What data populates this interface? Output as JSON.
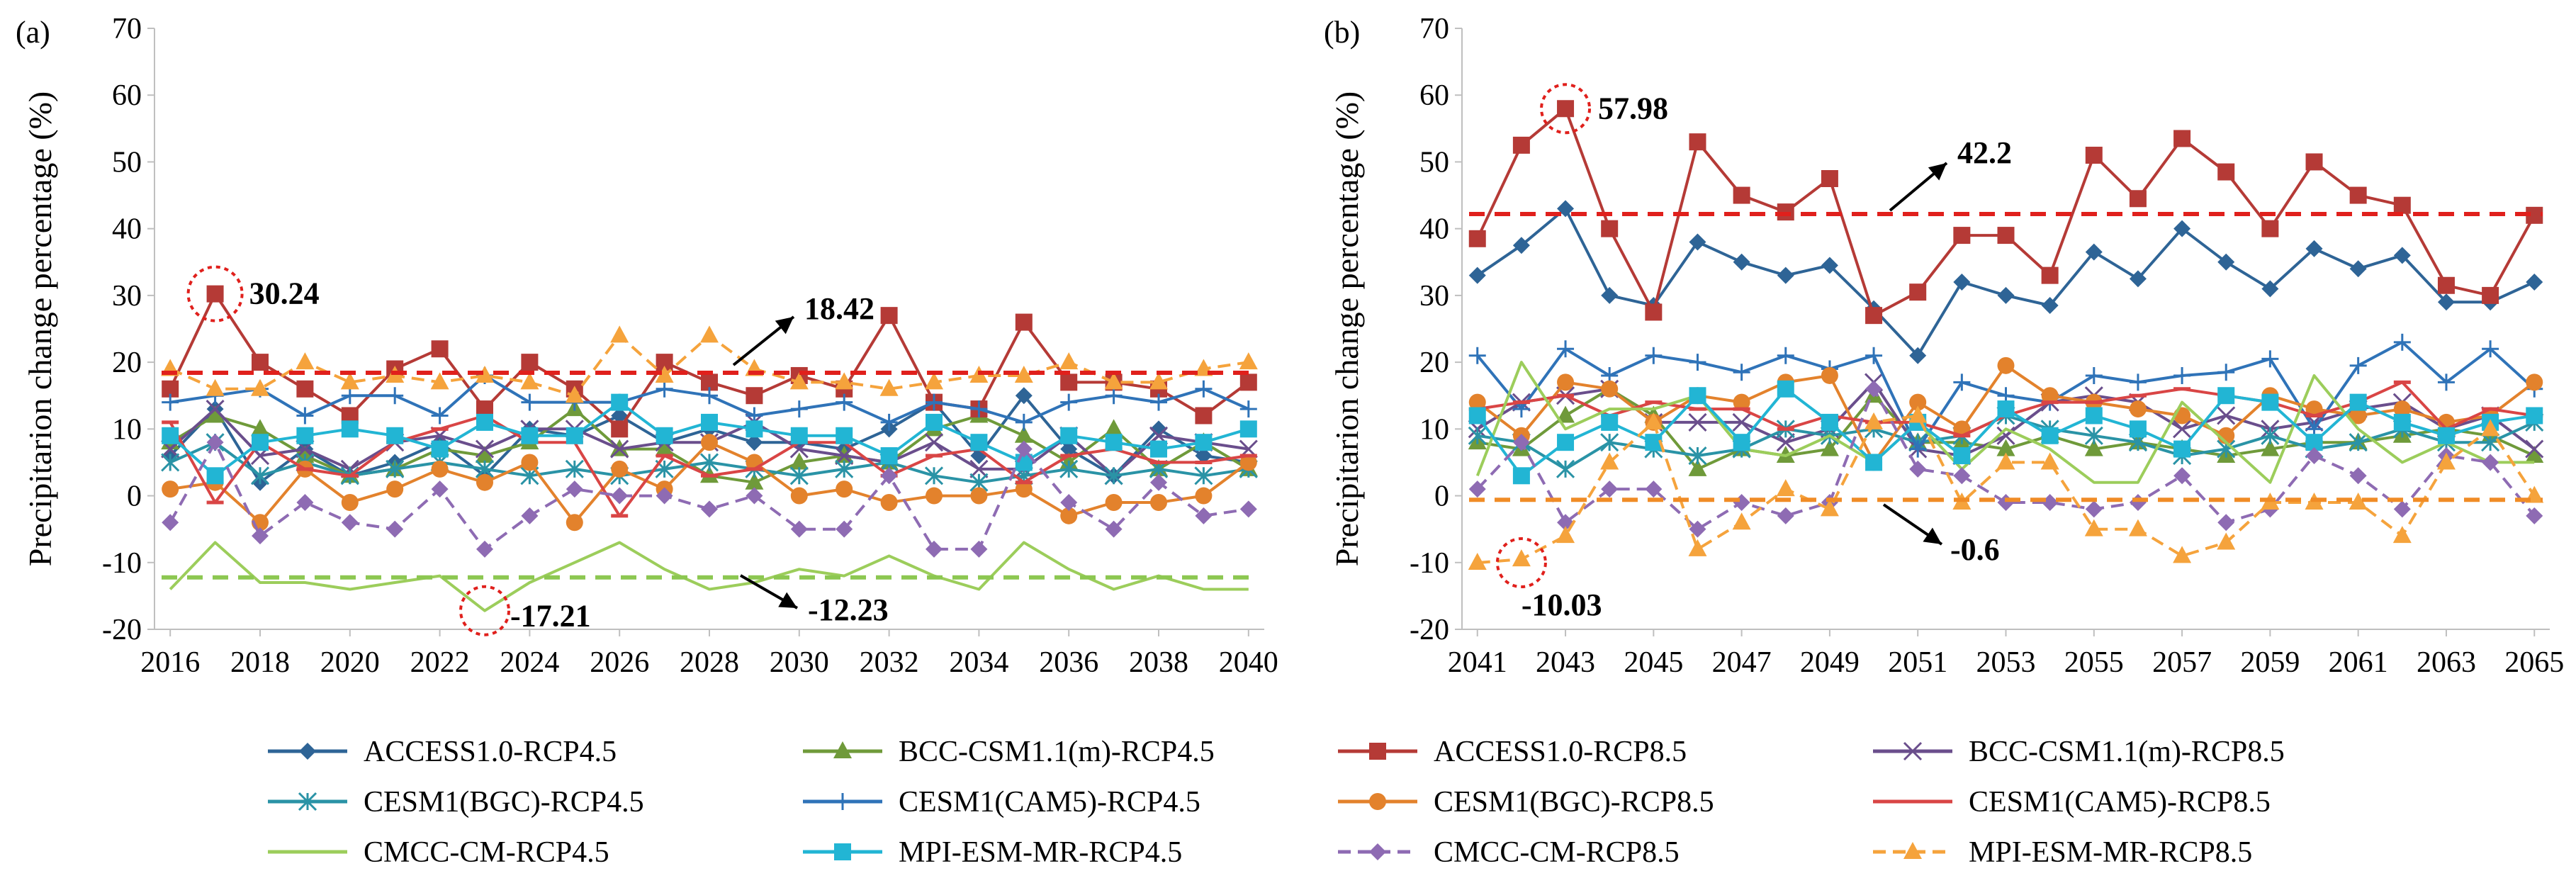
{
  "chart_data": [
    {
      "type": "line",
      "panel_label": "(a)",
      "ylabel": "Precipitarion change percentage  (%)",
      "xlabel": "",
      "ylim": [
        -20,
        70
      ],
      "yticks": [
        "-20",
        "-10",
        "0",
        "10",
        "20",
        "30",
        "40",
        "50",
        "60",
        "70"
      ],
      "x": [
        2016,
        2017,
        2018,
        2019,
        2020,
        2021,
        2022,
        2023,
        2024,
        2025,
        2026,
        2027,
        2028,
        2029,
        2030,
        2031,
        2032,
        2033,
        2034,
        2035,
        2036,
        2037,
        2038,
        2039,
        2040
      ],
      "xtick_labels": [
        "2016",
        "2018",
        "2020",
        "2022",
        "2024",
        "2026",
        "2028",
        "2030",
        "2032",
        "2034",
        "2036",
        "2038",
        "2040"
      ],
      "series": [
        {
          "name": "ACCESS1.0-RCP4.5",
          "values": [
            6,
            13,
            2,
            7,
            3,
            5,
            8,
            3,
            10,
            9,
            12,
            8,
            10,
            8,
            8,
            7,
            10,
            14,
            6,
            15,
            7,
            3,
            10,
            6,
            5
          ]
        },
        {
          "name": "BCC-CSM1.1(m)-RCP4.5",
          "values": [
            8,
            12,
            10,
            6,
            3,
            4,
            7,
            6,
            8,
            13,
            7,
            7,
            3,
            2,
            5,
            6,
            5,
            10,
            12,
            9,
            5,
            10,
            4,
            8,
            4
          ]
        },
        {
          "name": "ACCESS1.0-RCP8.5",
          "values": [
            16,
            30.24,
            20,
            16,
            12,
            19,
            22,
            13,
            20,
            16,
            10,
            20,
            17,
            15,
            18,
            16,
            27,
            14,
            13,
            26,
            17,
            17,
            16,
            12,
            17
          ]
        },
        {
          "name": "BCC-CSM1.1(m)-RCP8.5",
          "values": [
            7,
            13,
            6,
            7,
            4,
            8,
            9,
            7,
            10,
            10,
            7,
            8,
            8,
            11,
            7,
            6,
            5,
            8,
            4,
            4,
            9,
            3,
            9,
            8,
            7
          ]
        },
        {
          "name": "CESM1(BGC)-RCP4.5",
          "values": [
            5,
            8,
            3,
            5,
            3,
            4,
            5,
            4,
            3,
            4,
            3,
            4,
            5,
            4,
            3,
            4,
            5,
            3,
            2,
            3,
            4,
            3,
            4,
            3,
            4
          ]
        },
        {
          "name": "CESM1(CAM5)-RCP4.5",
          "values": [
            14,
            15,
            16,
            12,
            15,
            15,
            12,
            18,
            14,
            14,
            14,
            16,
            15,
            12,
            13,
            14,
            11,
            14,
            13,
            11,
            14,
            15,
            14,
            16,
            13
          ]
        },
        {
          "name": "CESM1(BGC)-RCP8.5",
          "values": [
            1,
            2,
            -4,
            4,
            -1,
            1,
            4,
            2,
            5,
            -4,
            4,
            1,
            8,
            5,
            0,
            1,
            -1,
            0,
            0,
            1,
            -3,
            -1,
            -1,
            0,
            5
          ]
        },
        {
          "name": "CESM1(CAM5)-RCP8.5",
          "values": [
            11,
            -1,
            8,
            4,
            3,
            8,
            10,
            12,
            8,
            8,
            -3,
            6,
            3,
            4,
            8,
            8,
            3,
            6,
            7,
            2,
            6,
            7,
            5,
            5,
            6
          ]
        },
        {
          "name": "CMCC-CM-RCP4.5",
          "values": [
            -14,
            -7,
            -13,
            -13,
            -14,
            -13,
            -12,
            -17.21,
            -13,
            -10,
            -7,
            -11,
            -14,
            -13,
            -11,
            -12,
            -9,
            -12,
            -14,
            -7,
            -11,
            -14,
            -12,
            -14,
            -14
          ]
        },
        {
          "name": "MPI-ESM-MR-RCP4.5",
          "values": [
            9,
            3,
            8,
            9,
            10,
            9,
            7,
            11,
            9,
            9,
            14,
            9,
            11,
            10,
            9,
            9,
            6,
            11,
            8,
            5,
            9,
            8,
            7,
            8,
            10
          ]
        },
        {
          "name": "CMCC-CM-RCP8.5",
          "values": [
            -4,
            8,
            -6,
            -1,
            -4,
            -5,
            1,
            -8,
            -3,
            1,
            0,
            0,
            -2,
            0,
            -5,
            -5,
            3,
            -8,
            -8,
            7,
            -1,
            -5,
            2,
            -3,
            -2
          ]
        },
        {
          "name": "MPI-ESM-MR-RCP8.5",
          "values": [
            19,
            16,
            16,
            20,
            17,
            18,
            17,
            18,
            17,
            15,
            24,
            18,
            24,
            19,
            17,
            17,
            16,
            17,
            18,
            18,
            20,
            17,
            17,
            19,
            20
          ]
        }
      ],
      "reference_lines": [
        {
          "series": "ACCESS1.0-RCP8.5",
          "value": 18.42
        },
        {
          "series": "CMCC-CM-RCP4.5",
          "value": -12.23
        }
      ],
      "annotations": [
        {
          "text": "30.24",
          "x": 2017,
          "y": 30.24,
          "circled": true
        },
        {
          "text": "-17.21",
          "x": 2023,
          "y": -17.21,
          "circled": true
        },
        {
          "text": "18.42",
          "arrow": true
        },
        {
          "text": "-12.23",
          "arrow": true
        }
      ]
    },
    {
      "type": "line",
      "panel_label": "(b)",
      "ylabel": "Precipitarion change percentage  (%)",
      "xlabel": "",
      "ylim": [
        -20,
        70
      ],
      "yticks": [
        "-20",
        "-10",
        "0",
        "10",
        "20",
        "30",
        "40",
        "50",
        "60",
        "70"
      ],
      "x": [
        2041,
        2042,
        2043,
        2044,
        2045,
        2046,
        2047,
        2048,
        2049,
        2050,
        2051,
        2052,
        2053,
        2054,
        2055,
        2056,
        2057,
        2058,
        2059,
        2060,
        2061,
        2062,
        2063,
        2064,
        2065
      ],
      "xtick_labels": [
        "2041",
        "2043",
        "2045",
        "2047",
        "2049",
        "2051",
        "2053",
        "2055",
        "2057",
        "2059",
        "2061",
        "2063",
        "2065"
      ],
      "series": [
        {
          "name": "ACCESS1.0-RCP4.5",
          "values": [
            33,
            37.5,
            43,
            30,
            28.5,
            38,
            35,
            33,
            34.5,
            28,
            21,
            32,
            30,
            28.5,
            36.5,
            32.5,
            40,
            35,
            31,
            37,
            34,
            36,
            29,
            29,
            32
          ]
        },
        {
          "name": "BCC-CSM1.1(m)-RCP4.5",
          "values": [
            8,
            7,
            12,
            16,
            12,
            4,
            7,
            6,
            7,
            15,
            8,
            8,
            7,
            9,
            7,
            8,
            7,
            6,
            7,
            8,
            8,
            9,
            10,
            9,
            6
          ]
        },
        {
          "name": "ACCESS1.0-RCP8.5",
          "values": [
            38.5,
            52.5,
            57.98,
            40,
            27.5,
            53,
            45,
            42.5,
            47.5,
            27,
            30.5,
            39,
            39,
            33,
            51,
            44.5,
            53.5,
            48.5,
            40,
            50,
            45,
            43.5,
            31.5,
            30,
            42
          ]
        },
        {
          "name": "BCC-CSM1.1(m)-RCP8.5",
          "values": [
            10,
            14,
            15,
            16,
            11,
            11,
            11,
            8,
            10,
            17,
            7,
            6,
            9,
            14,
            15,
            14,
            10,
            12,
            10,
            11,
            13,
            14,
            10,
            12,
            7
          ]
        },
        {
          "name": "CESM1(BGC)-RCP4.5",
          "values": [
            9,
            8,
            4,
            8,
            7,
            6,
            7,
            10,
            9,
            10,
            8,
            9,
            12,
            10,
            9,
            8,
            6,
            7,
            9,
            7,
            8,
            10,
            8,
            8,
            11
          ]
        },
        {
          "name": "CESM1(CAM5)-RCP4.5",
          "values": [
            21,
            13,
            22,
            18,
            21,
            20,
            18.5,
            21,
            19,
            21,
            7,
            17,
            15,
            14,
            18,
            17,
            18,
            18.5,
            20.5,
            10,
            19.5,
            23,
            17,
            22,
            16
          ]
        },
        {
          "name": "CESM1(BGC)-RCP8.5",
          "values": [
            14,
            9,
            17,
            16,
            11,
            15,
            14,
            17,
            18,
            5,
            14,
            10,
            19.5,
            15,
            14,
            13,
            12,
            9,
            15,
            13,
            12,
            13,
            11,
            12,
            17
          ]
        },
        {
          "name": "CESM1(CAM5)-RCP8.5",
          "values": [
            13,
            14,
            15,
            12,
            14,
            13,
            13,
            10,
            12,
            11,
            11,
            9,
            12,
            14,
            14,
            15,
            16,
            15,
            14,
            12,
            14,
            17,
            10,
            13,
            12
          ]
        },
        {
          "name": "CMCC-CM-RCP4.5",
          "values": [
            3,
            20,
            10,
            13,
            13,
            15,
            7,
            6,
            9,
            5,
            11,
            4,
            10,
            7,
            2,
            2,
            14,
            8,
            2,
            18,
            10,
            5,
            8,
            5,
            5
          ]
        },
        {
          "name": "MPI-ESM-MR-RCP4.5",
          "values": [
            12,
            3,
            8,
            11,
            8,
            15,
            8,
            16,
            11,
            5,
            11,
            6,
            13,
            9,
            12,
            10,
            7,
            15,
            14,
            8,
            14,
            11,
            9,
            11,
            12
          ]
        },
        {
          "name": "CMCC-CM-RCP8.5",
          "values": [
            1,
            8,
            -4,
            1,
            1,
            -5,
            -1,
            -3,
            -1,
            16,
            4,
            3,
            -1,
            -1,
            -2,
            -1,
            3,
            -4,
            -2,
            6,
            3,
            -2,
            6,
            5,
            -3
          ]
        },
        {
          "name": "MPI-ESM-MR-RCP8.5",
          "values": [
            -10.03,
            -9.5,
            -6,
            5,
            11,
            -8,
            -4,
            1,
            -2,
            11,
            12,
            -1,
            5,
            5,
            -5,
            -5,
            -9,
            -7,
            -1,
            -1,
            -1,
            -6,
            5,
            10,
            0
          ]
        }
      ],
      "reference_lines": [
        {
          "series": "ACCESS1.0-RCP8.5",
          "value": 42.2
        },
        {
          "series": "MPI-ESM-MR-RCP8.5",
          "value": -0.6
        }
      ],
      "annotations": [
        {
          "text": "57.98",
          "x": 2043,
          "y": 57.98,
          "circled": true
        },
        {
          "text": "-10.03",
          "x": 2042,
          "y": -10.03,
          "circled": true
        },
        {
          "text": "42.2",
          "arrow": true
        },
        {
          "text": "-0.6",
          "arrow": true
        }
      ]
    }
  ],
  "legend": {
    "placement": "bottom",
    "items": [
      {
        "name": "ACCESS1.0-RCP4.5",
        "color": "#2e6496",
        "marker": "diamond",
        "dash": "solid"
      },
      {
        "name": "BCC-CSM1.1(m)-RCP4.5",
        "color": "#6f9a3a",
        "marker": "triangle",
        "dash": "solid"
      },
      {
        "name": "ACCESS1.0-RCP8.5",
        "color": "#b53a36",
        "marker": "square",
        "dash": "solid"
      },
      {
        "name": "BCC-CSM1.1(m)-RCP8.5",
        "color": "#6a4e8c",
        "marker": "x",
        "dash": "solid"
      },
      {
        "name": "CESM1(BGC)-RCP4.5",
        "color": "#2a93a6",
        "marker": "asterisk",
        "dash": "solid"
      },
      {
        "name": "CESM1(CAM5)-RCP4.5",
        "color": "#2f73b8",
        "marker": "plus",
        "dash": "solid"
      },
      {
        "name": "CESM1(BGC)-RCP8.5",
        "color": "#e3822c",
        "marker": "circle",
        "dash": "solid"
      },
      {
        "name": "CESM1(CAM5)-RCP8.5",
        "color": "#d94545",
        "marker": "dash",
        "dash": "solid"
      },
      {
        "name": "CMCC-CM-RCP4.5",
        "color": "#9ccd5b",
        "marker": "none",
        "dash": "solid"
      },
      {
        "name": "MPI-ESM-MR-RCP4.5",
        "color": "#22b5d4",
        "marker": "square",
        "dash": "solid"
      },
      {
        "name": "CMCC-CM-RCP8.5",
        "color": "#8e6bb3",
        "marker": "diamond",
        "dash": "dashed"
      },
      {
        "name": "MPI-ESM-MR-RCP8.5",
        "color": "#f5a33c",
        "marker": "triangle",
        "dash": "dashed"
      }
    ]
  },
  "colors": {
    "reference_red": "#e0201c",
    "reference_green": "#8cc751",
    "reference_orange": "#f08c26",
    "axis": "#bfbfbf",
    "circle": "#e0201c"
  }
}
